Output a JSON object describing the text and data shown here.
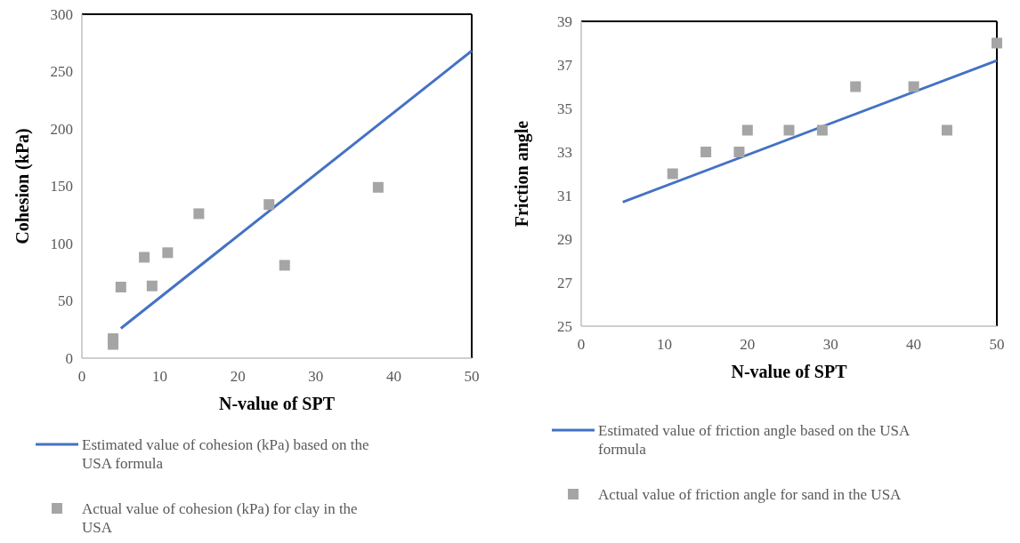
{
  "chart_data": [
    {
      "type": "scatter",
      "xlabel": "N-value of SPT",
      "ylabel": "Cohesion (kPa)",
      "xlim": [
        0,
        50
      ],
      "xticks": [
        0,
        10,
        20,
        30,
        40,
        50
      ],
      "ylim": [
        0,
        300
      ],
      "yticks": [
        0,
        50,
        100,
        150,
        200,
        250,
        300
      ],
      "grid": false,
      "legend": "bottom",
      "series": [
        {
          "name": "Estimated value of cohesion (kPa) based on the USA formula",
          "type": "line",
          "color": "#4472c4",
          "x": [
            5,
            50
          ],
          "values": [
            26,
            268
          ]
        },
        {
          "name": "Actual value of cohesion (kPa) for clay in the USA",
          "marker": "square",
          "color": "#a5a5a5",
          "x": [
            4,
            4,
            5,
            8,
            9,
            11,
            15,
            24,
            26,
            38
          ],
          "values": [
            17,
            12,
            62,
            88,
            63,
            92,
            126,
            134,
            81,
            149
          ]
        }
      ]
    },
    {
      "type": "scatter",
      "xlabel": "N-value of SPT",
      "ylabel": "Friction angle",
      "xlim": [
        0,
        50
      ],
      "xticks": [
        0,
        10,
        20,
        30,
        40,
        50
      ],
      "ylim": [
        25,
        39
      ],
      "yticks": [
        25,
        27,
        29,
        31,
        33,
        35,
        37,
        39
      ],
      "grid": false,
      "legend": "bottom",
      "series": [
        {
          "name": "Estimated value of friction angle based on the USA formula",
          "type": "line",
          "color": "#4472c4",
          "x": [
            5,
            50
          ],
          "values": [
            30.7,
            37.2
          ]
        },
        {
          "name": "Actual value of friction angle for sand in the USA",
          "marker": "square",
          "color": "#a5a5a5",
          "x": [
            11,
            15,
            19,
            20,
            25,
            29,
            33,
            40,
            44,
            50
          ],
          "values": [
            32,
            33,
            33,
            34,
            34,
            34,
            36,
            36,
            34,
            38
          ]
        }
      ]
    }
  ]
}
